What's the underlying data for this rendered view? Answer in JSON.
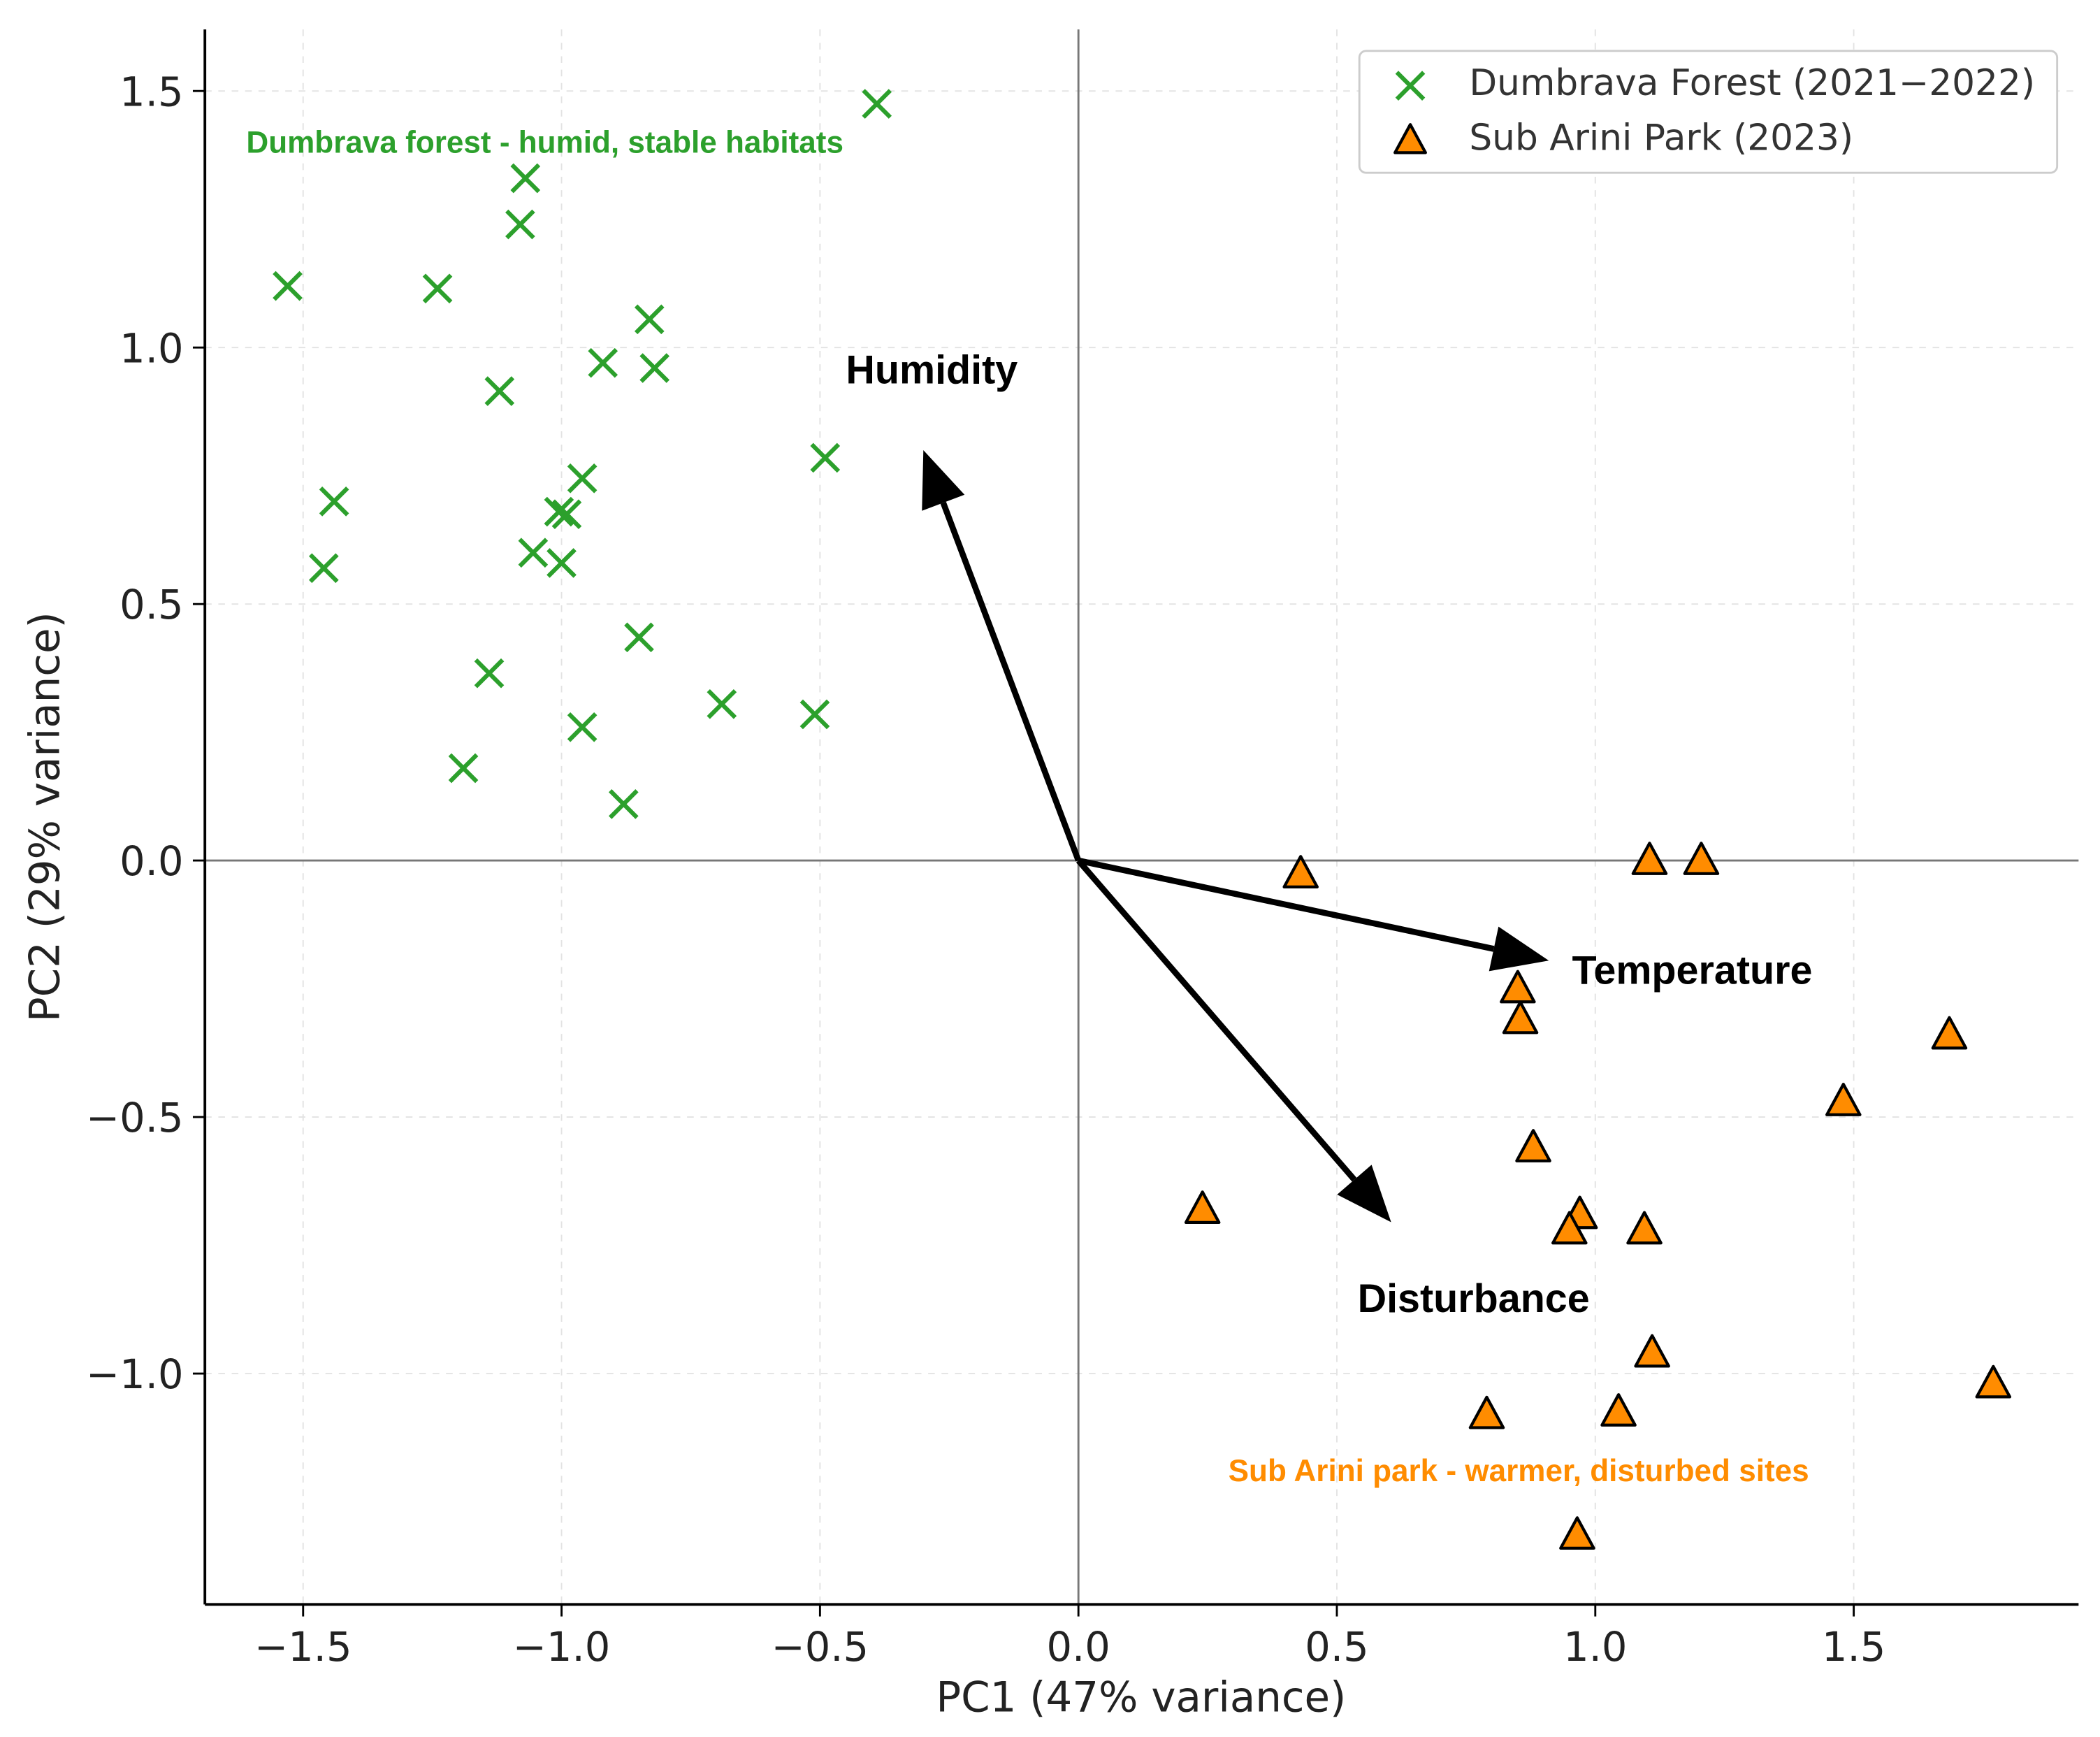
{
  "chart_data": {
    "type": "scatter",
    "title": "",
    "xlabel": "PC1 (47% variance)",
    "ylabel": "PC2 (29% variance)",
    "xlim": [
      -1.69,
      1.935
    ],
    "ylim": [
      -1.45,
      1.62
    ],
    "xticks": [
      -1.5,
      -1.0,
      -0.5,
      0.0,
      0.5,
      1.0,
      1.5
    ],
    "xtick_labels": [
      "−1.5",
      "−1.0",
      "−0.5",
      "0.0",
      "0.5",
      "1.0",
      "1.5"
    ],
    "yticks": [
      -1.0,
      -0.5,
      0.0,
      0.5,
      1.0,
      1.5
    ],
    "ytick_labels": [
      "−1.0",
      "−0.5",
      "0.0",
      "0.5",
      "1.0",
      "1.5"
    ],
    "grid": true,
    "legend_position": "top-right",
    "series": [
      {
        "name": "Dumbrava Forest (2021−2022)",
        "marker": "x",
        "color": "#2ca02c",
        "points": [
          [
            -1.53,
            1.12
          ],
          [
            -1.24,
            1.115
          ],
          [
            -1.07,
            1.33
          ],
          [
            -1.08,
            1.24
          ],
          [
            -0.83,
            1.055
          ],
          [
            -0.82,
            0.96
          ],
          [
            -0.92,
            0.97
          ],
          [
            -1.12,
            0.915
          ],
          [
            -0.49,
            0.785
          ],
          [
            -0.39,
            1.475
          ],
          [
            -1.44,
            0.7
          ],
          [
            -1.46,
            0.57
          ],
          [
            -0.96,
            0.745
          ],
          [
            -1.005,
            0.68
          ],
          [
            -0.99,
            0.675
          ],
          [
            -1.055,
            0.6
          ],
          [
            -1.0,
            0.58
          ],
          [
            -0.85,
            0.435
          ],
          [
            -1.14,
            0.365
          ],
          [
            -0.96,
            0.26
          ],
          [
            -1.19,
            0.18
          ],
          [
            -0.88,
            0.11
          ],
          [
            -0.69,
            0.305
          ],
          [
            -0.51,
            0.285
          ]
        ]
      },
      {
        "name": "Sub Arini Park (2023)",
        "marker": "triangle",
        "color": "#ff8c00",
        "points": [
          [
            0.43,
            -0.026
          ],
          [
            1.105,
            0.0
          ],
          [
            1.205,
            0.0
          ],
          [
            0.85,
            -0.25
          ],
          [
            0.855,
            -0.31
          ],
          [
            1.685,
            -0.34
          ],
          [
            1.48,
            -0.47
          ],
          [
            0.88,
            -0.56
          ],
          [
            0.24,
            -0.68
          ],
          [
            0.97,
            -0.69
          ],
          [
            0.95,
            -0.72
          ],
          [
            1.095,
            -0.72
          ],
          [
            1.11,
            -0.96
          ],
          [
            1.77,
            -1.02
          ],
          [
            0.79,
            -1.08
          ],
          [
            1.045,
            -1.075
          ],
          [
            0.965,
            -1.315
          ]
        ]
      }
    ],
    "vectors": [
      {
        "label": "Humidity",
        "end": [
          -0.3,
          0.8
        ],
        "label_at": [
          -0.45,
          0.93
        ]
      },
      {
        "label": "Temperature",
        "end": [
          0.91,
          -0.195
        ],
        "label_at": [
          0.955,
          -0.24
        ]
      },
      {
        "label": "Disturbance",
        "end": [
          0.605,
          -0.705
        ],
        "label_at": [
          0.54,
          -0.88
        ]
      }
    ],
    "annotations": [
      {
        "text": "Dumbrava forest - humid, stable habitats",
        "color": "#2ca02c",
        "at": [
          -1.61,
          1.38
        ]
      },
      {
        "text": "Sub Arini park - warmer, disturbed sites",
        "color": "#ff8c00",
        "at": [
          0.29,
          -1.21
        ]
      }
    ]
  }
}
